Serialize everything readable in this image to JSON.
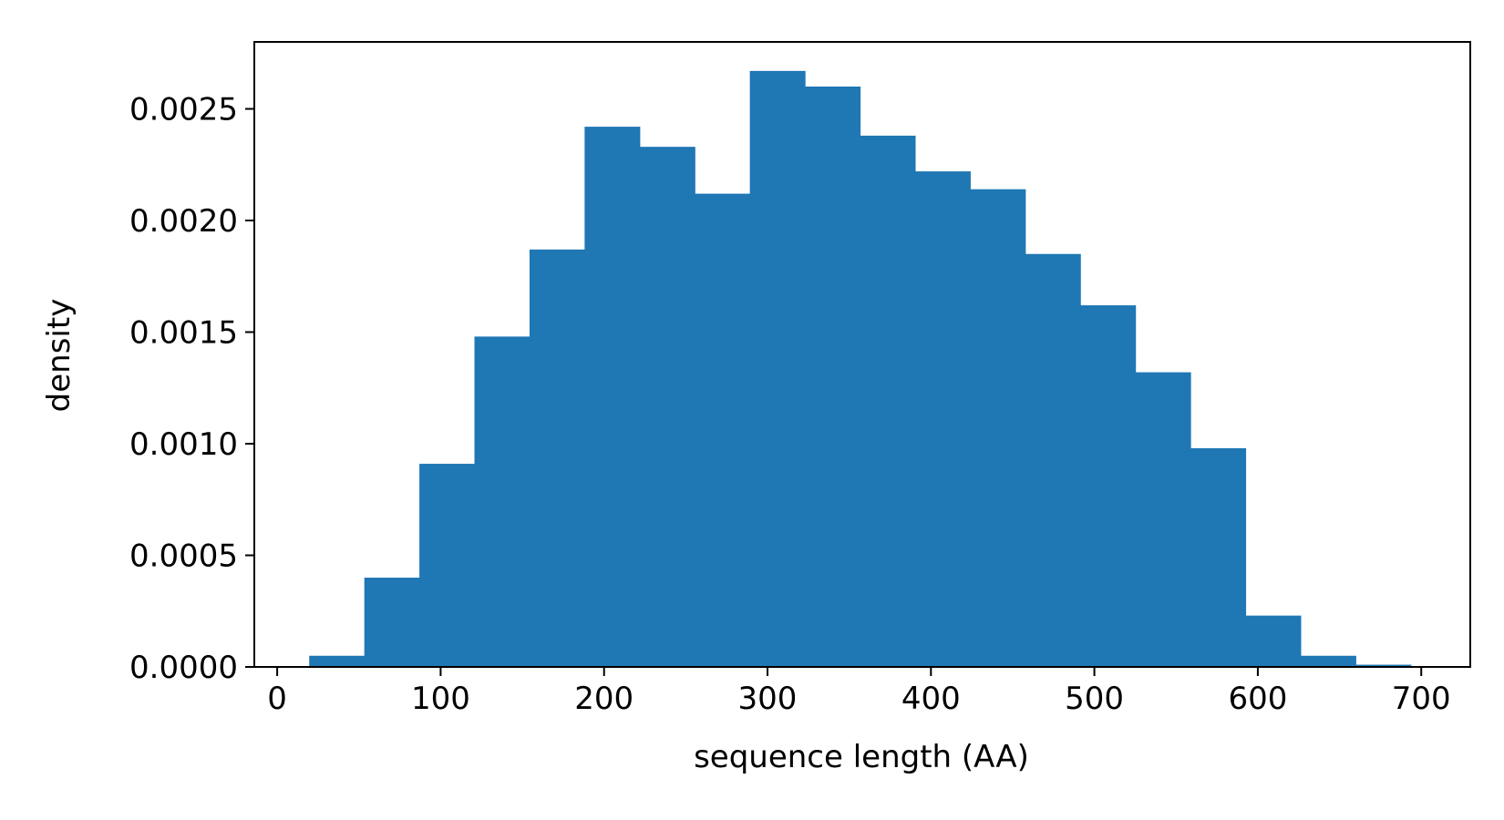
{
  "chart_data": {
    "type": "bar",
    "title": "",
    "xlabel": "sequence length (AA)",
    "ylabel": "density",
    "xlim": [
      -14,
      730
    ],
    "ylim": [
      0,
      0.0028
    ],
    "xticks": [
      0,
      100,
      200,
      300,
      400,
      500,
      600,
      700
    ],
    "yticks": [
      0.0,
      0.0005,
      0.001,
      0.0015,
      0.002,
      0.0025
    ],
    "xtick_labels": [
      "0",
      "100",
      "200",
      "300",
      "400",
      "500",
      "600",
      "700"
    ],
    "ytick_labels": [
      "0.0000",
      "0.0005",
      "0.0010",
      "0.0015",
      "0.0020",
      "0.0025"
    ],
    "bar_color": "#1f77b4",
    "grid": false,
    "legend": "none",
    "bin_edges": [
      19.6,
      53.3,
      87.0,
      120.7,
      154.4,
      188.1,
      221.8,
      255.5,
      289.2,
      322.9,
      356.6,
      390.3,
      424.0,
      457.7,
      491.4,
      525.1,
      558.8,
      592.5,
      626.2,
      659.9,
      693.6
    ],
    "values": [
      5e-05,
      0.0004,
      0.00091,
      0.00148,
      0.00187,
      0.00242,
      0.00233,
      0.00212,
      0.00267,
      0.0026,
      0.00238,
      0.00222,
      0.00214,
      0.00185,
      0.00162,
      0.00132,
      0.00098,
      0.00023,
      5e-05,
      1e-05
    ]
  }
}
